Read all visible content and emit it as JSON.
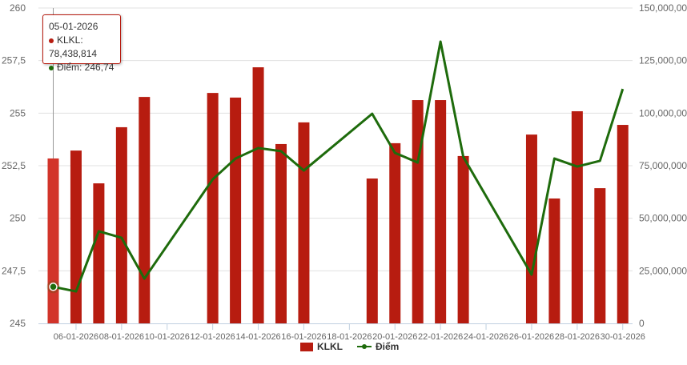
{
  "chart_data": {
    "type": "bar+line",
    "title": "",
    "x": [
      "05-01-2026",
      "06-01-2026",
      "07-01-2026",
      "08-01-2026",
      "09-01-2026",
      "12-01-2026",
      "13-01-2026",
      "14-01-2026",
      "15-01-2026",
      "16-01-2026",
      "19-01-2026",
      "20-01-2026",
      "21-01-2026",
      "22-01-2026",
      "23-01-2026",
      "26-01-2026",
      "27-01-2026",
      "28-01-2026",
      "29-01-2026",
      "30-01-2026"
    ],
    "x_tick_labels": [
      "06-01-2026",
      "08-01-2026",
      "10-01-2026",
      "12-01-2026",
      "14-01-2026",
      "16-01-2026",
      "18-01-2026",
      "20-01-2026",
      "22-01-2026",
      "24-01-2026",
      "26-01-2026",
      "28-01-2026",
      "30-01-2026"
    ],
    "y_left": {
      "range": [
        245,
        260
      ],
      "ticks": [
        "245",
        "247,5",
        "250",
        "252,5",
        "255",
        "257,5",
        "260"
      ]
    },
    "y_right": {
      "range": [
        0,
        150000000
      ],
      "ticks": [
        "0",
        "25,000,000",
        "50,000,000",
        "75,000,000",
        "100,000,000",
        "125,000,000",
        "150,000,000"
      ]
    },
    "grid": true,
    "legend_position": "bottom",
    "series": [
      {
        "name": "KLKL",
        "type": "bar",
        "axis": "right",
        "color": "#b71c10",
        "values": [
          78438814,
          82200000,
          66600000,
          93300000,
          107700000,
          109600000,
          107400000,
          121800000,
          85300000,
          95600000,
          68900000,
          85700000,
          106200000,
          106200000,
          79600000,
          89800000,
          59400000,
          100900000,
          64300000,
          94400000
        ]
      },
      {
        "name": "Điểm",
        "type": "line",
        "axis": "left",
        "color": "#1e6b0c",
        "values": [
          246.74,
          246.52,
          249.38,
          249.07,
          247.13,
          251.85,
          252.84,
          253.34,
          253.19,
          252.27,
          254.97,
          253.11,
          252.65,
          258.4,
          252.92,
          247.32,
          252.84,
          252.46,
          252.73,
          256.15
        ]
      }
    ],
    "tooltip": {
      "date": "05-01-2026",
      "klkl": "KLKL: 78,438,814",
      "diem": "Điểm: 246,74"
    }
  }
}
